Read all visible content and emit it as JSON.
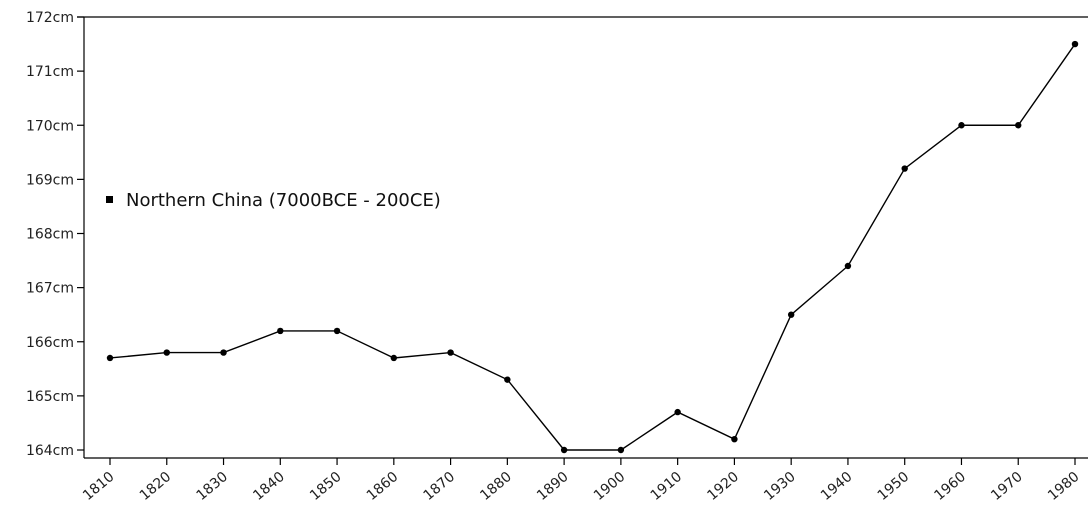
{
  "chart_data": {
    "type": "line",
    "title": "",
    "xlabel": "",
    "ylabel": "",
    "x": [
      1810,
      1820,
      1830,
      1840,
      1850,
      1860,
      1870,
      1880,
      1890,
      1900,
      1910,
      1920,
      1930,
      1940,
      1950,
      1960,
      1970,
      1980
    ],
    "x_tick_labels": [
      "1810",
      "1820",
      "1830",
      "1840",
      "1850",
      "1860",
      "1870",
      "1880",
      "1890",
      "1900",
      "1910",
      "1920",
      "1930",
      "1940",
      "1950",
      "1960",
      "1970",
      "1980"
    ],
    "series": [
      {
        "name": "Northern China (7000BCE - 200CE)",
        "values": [
          165.7,
          165.8,
          165.8,
          166.2,
          166.2,
          165.7,
          165.8,
          165.3,
          164.0,
          164.0,
          164.7,
          164.2,
          166.5,
          167.4,
          169.2,
          170.0,
          170.0,
          171.5
        ]
      }
    ],
    "ylim": [
      164,
      172
    ],
    "y_ticks": [
      164,
      165,
      166,
      167,
      168,
      169,
      170,
      171,
      172
    ],
    "y_tick_labels": [
      "164cm",
      "165cm",
      "166cm",
      "167cm",
      "168cm",
      "169cm",
      "170cm",
      "171cm",
      "172cm"
    ],
    "grid": false,
    "legend_placement": "left",
    "colors": {
      "line": "#000000",
      "marker": "#000000",
      "axis": "#000000"
    }
  }
}
